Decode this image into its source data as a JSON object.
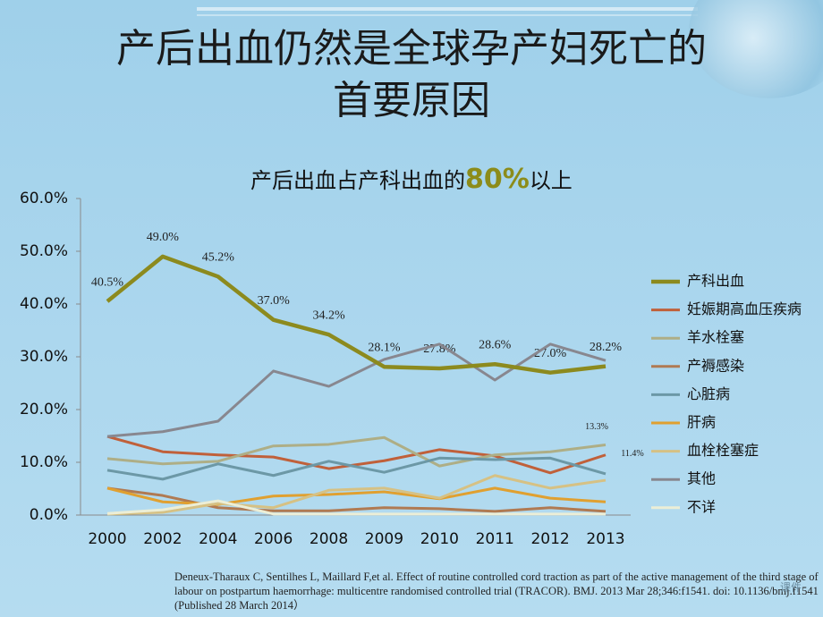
{
  "slide": {
    "title_lines": [
      "产后出血仍然是全球孕产妇死亡的",
      "首要原因"
    ],
    "citation": "Deneux-Tharaux C, Sentilhes L, Maillard F,et al. Effect of routine controlled cord traction as part of the active management of the third stage of labour on postpartum haemorrhage: multicentre randomised controlled trial (TRACOR). BMJ. 2013 Mar 28;346:f1541. doi: 10.1136/bmj.f1541 (Published 28 March 2014）",
    "watermark": "课件"
  },
  "chart_data": {
    "type": "line",
    "subtitle": [
      "产后出血占产科出血的",
      "80%",
      "以上"
    ],
    "categories": [
      "2000",
      "2002",
      "2004",
      "2006",
      "2008",
      "2009",
      "2010",
      "2011",
      "2012",
      "2013"
    ],
    "ylim": [
      0,
      60
    ],
    "yticks": [
      {
        "value": 0,
        "label": "0.0%"
      },
      {
        "value": 10,
        "label": "10.0%"
      },
      {
        "value": 20,
        "label": "20.0%"
      },
      {
        "value": 30,
        "label": "30.0%"
      },
      {
        "value": 40,
        "label": "40.0%"
      },
      {
        "value": 50,
        "label": "50.0%"
      },
      {
        "value": 60,
        "label": "60.0%"
      }
    ],
    "grid": false,
    "legend": "right",
    "series": [
      {
        "name": "产科出血",
        "color": "#8c8a1e",
        "values": [
          40.5,
          49.0,
          45.2,
          37.0,
          34.2,
          28.1,
          27.8,
          28.6,
          27.0,
          28.2
        ],
        "value_labels": [
          "40.5%",
          "49.0%",
          "45.2%",
          "37.0%",
          "34.2%",
          "28.1%",
          "27.8%",
          "28.6%",
          "27.0%",
          "28.2%"
        ]
      },
      {
        "name": "妊娠期高血压疾病",
        "color": "#c0603a",
        "values": [
          14.9,
          12.0,
          11.4,
          11.0,
          8.8,
          10.3,
          12.4,
          11.2,
          8.0,
          11.4
        ],
        "value_labels": [
          null,
          null,
          null,
          null,
          null,
          null,
          null,
          null,
          null,
          "11.4%"
        ]
      },
      {
        "name": "羊水栓塞",
        "color": "#aeae86",
        "values": [
          10.7,
          9.7,
          10.2,
          13.1,
          13.4,
          14.7,
          9.3,
          11.4,
          12.0,
          13.3
        ],
        "value_labels": [
          null,
          null,
          null,
          null,
          null,
          null,
          null,
          null,
          null,
          "13.3%"
        ]
      },
      {
        "name": "产褥感染",
        "color": "#b07a52",
        "values": [
          5.1,
          3.7,
          1.4,
          0.8,
          0.8,
          1.4,
          1.2,
          0.7,
          1.4,
          0.7
        ]
      },
      {
        "name": "心脏病",
        "color": "#6c98a6",
        "values": [
          8.5,
          6.8,
          9.7,
          7.5,
          10.2,
          8.1,
          10.8,
          10.5,
          10.8,
          7.8
        ]
      },
      {
        "name": "肝病",
        "color": "#e0a030",
        "values": [
          5.1,
          2.5,
          2.0,
          3.6,
          3.9,
          4.4,
          3.1,
          5.1,
          3.2,
          2.5
        ]
      },
      {
        "name": "血栓栓塞症",
        "color": "#d6c184",
        "values": [
          0.2,
          0.5,
          2.2,
          1.4,
          4.7,
          5.1,
          3.2,
          7.5,
          5.1,
          6.6
        ]
      },
      {
        "name": "其他",
        "color": "#88878f",
        "values": [
          14.9,
          15.8,
          17.8,
          27.3,
          24.4,
          29.5,
          32.4,
          25.6,
          32.4,
          29.3
        ]
      },
      {
        "name": "不详",
        "color": "#eceed6",
        "values": [
          0.3,
          1.0,
          2.7,
          0.2,
          0.2,
          0.2,
          0.2,
          0.2,
          0.2,
          0.2
        ]
      }
    ]
  }
}
